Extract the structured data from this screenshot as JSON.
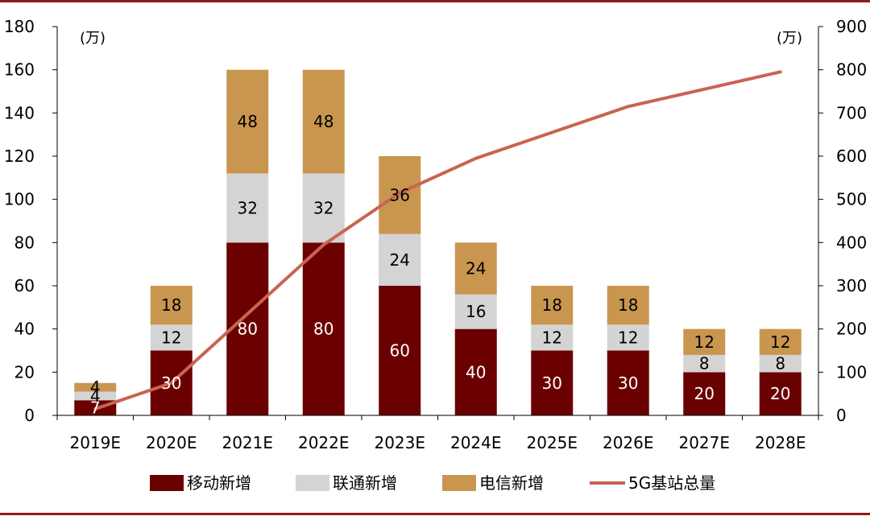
{
  "chart_data": {
    "type": "bar",
    "stacked": true,
    "categories": [
      "2019E",
      "2020E",
      "2021E",
      "2022E",
      "2023E",
      "2024E",
      "2025E",
      "2026E",
      "2027E",
      "2028E"
    ],
    "series": [
      {
        "name": "移动新增",
        "color": "#6b0000",
        "label_color": "#ffffff",
        "values": [
          7,
          30,
          80,
          80,
          60,
          40,
          30,
          30,
          20,
          20
        ],
        "labels": [
          "7",
          "30",
          "80",
          "80",
          "60",
          "40",
          "30",
          "30",
          "20",
          "20"
        ]
      },
      {
        "name": "联通新增",
        "color": "#d4d4d4",
        "label_color": "#000000",
        "values": [
          4,
          12,
          32,
          32,
          24,
          16,
          12,
          12,
          8,
          8
        ],
        "labels": [
          "4",
          "12",
          "32",
          "32",
          "24",
          "16",
          "12",
          "12",
          "8",
          "8"
        ]
      },
      {
        "name": "电信新增",
        "color": "#c99650",
        "label_color": "#000000",
        "values": [
          4,
          18,
          48,
          48,
          36,
          24,
          18,
          18,
          12,
          12
        ],
        "labels": [
          "4",
          "18",
          "48",
          "48",
          "36",
          "24",
          "18",
          "18",
          "12",
          "12"
        ]
      }
    ],
    "line_series": {
      "name": "5G基站总量",
      "color": "#c86451",
      "axis": "right",
      "values": [
        15,
        75,
        235,
        395,
        515,
        595,
        655,
        715,
        755,
        795
      ]
    },
    "y_left": {
      "min": 0,
      "max": 180,
      "ticks": [
        "0",
        "20",
        "40",
        "60",
        "80",
        "100",
        "120",
        "140",
        "160",
        "180"
      ],
      "unit": "(万)"
    },
    "y_right": {
      "min": 0,
      "max": 900,
      "ticks": [
        "0",
        "100",
        "200",
        "300",
        "400",
        "500",
        "600",
        "700",
        "800",
        "900"
      ],
      "unit": "(万)"
    },
    "legend_position": "bottom",
    "accent_color": "#8b1a1a"
  }
}
